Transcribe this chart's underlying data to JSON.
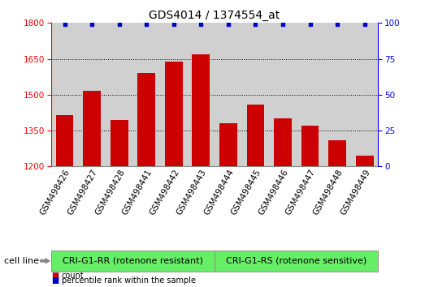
{
  "title": "GDS4014 / 1374554_at",
  "categories": [
    "GSM498426",
    "GSM498427",
    "GSM498428",
    "GSM498441",
    "GSM498442",
    "GSM498443",
    "GSM498444",
    "GSM498445",
    "GSM498446",
    "GSM498447",
    "GSM498448",
    "GSM498449"
  ],
  "bar_values": [
    1415,
    1515,
    1395,
    1590,
    1640,
    1670,
    1380,
    1460,
    1400,
    1370,
    1310,
    1245
  ],
  "percentile_values": [
    99,
    99,
    99,
    99,
    99,
    99,
    99,
    99,
    99,
    99,
    99,
    99
  ],
  "bar_color": "#cc0000",
  "percentile_color": "#0000cc",
  "ylim_left": [
    1200,
    1800
  ],
  "ylim_right": [
    0,
    100
  ],
  "yticks_left": [
    1200,
    1350,
    1500,
    1650,
    1800
  ],
  "yticks_right": [
    0,
    25,
    50,
    75,
    100
  ],
  "grid_lines": [
    1350,
    1500,
    1650
  ],
  "group1_label": "CRI-G1-RR (rotenone resistant)",
  "group2_label": "CRI-G1-RS (rotenone sensitive)",
  "cell_line_label": "cell line",
  "legend_count_label": "count",
  "legend_percentile_label": "percentile rank within the sample",
  "background_color": "#ffffff",
  "bar_bg_color": "#d0d0d0",
  "group_bg_color": "#66ee66",
  "title_fontsize": 10,
  "tick_fontsize": 7.5,
  "label_fontsize": 8,
  "bar_width": 0.65
}
